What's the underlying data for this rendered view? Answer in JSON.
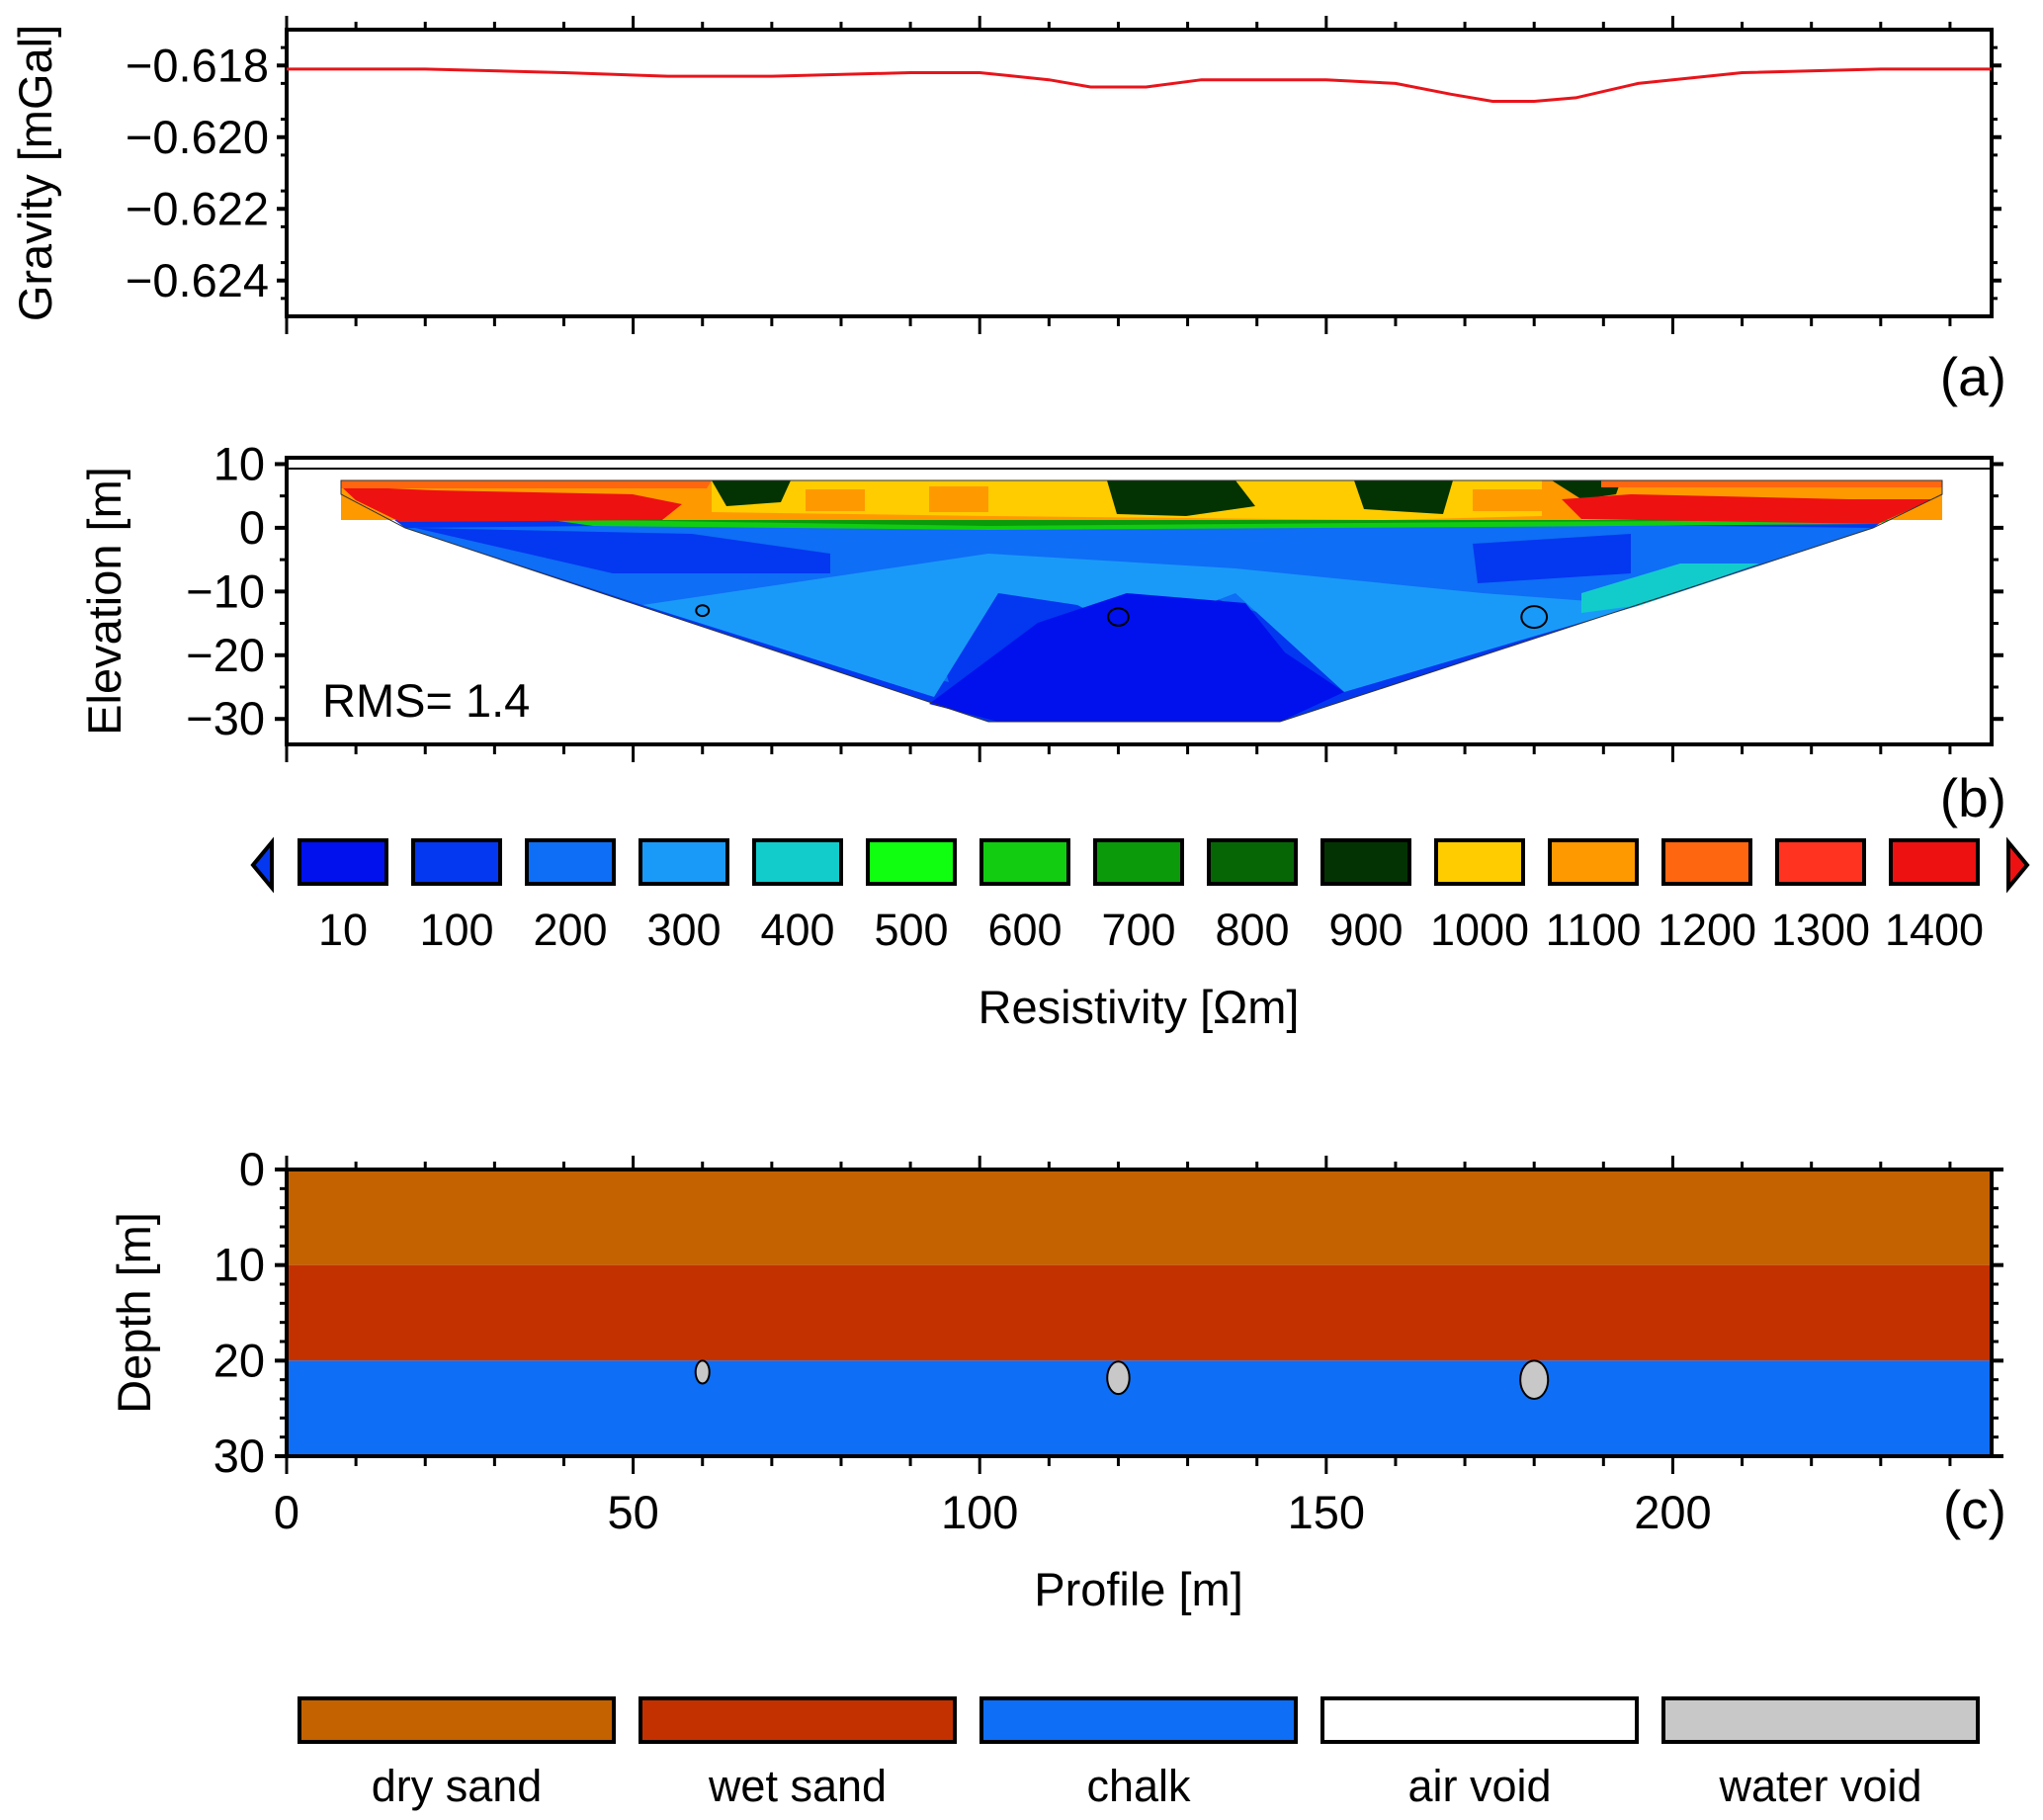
{
  "chart_data": [
    {
      "panel": "a",
      "type": "line",
      "panel_label": "(a)",
      "ylabel": "Gravity [mGal]",
      "xlim": [
        0,
        246
      ],
      "ylim": [
        -0.625,
        -0.617
      ],
      "yticks": [
        -0.618,
        -0.62,
        -0.622,
        -0.624
      ],
      "ytick_labels": [
        "−0.618",
        "−0.620",
        "−0.622",
        "−0.624"
      ],
      "line_color": "#e8141b",
      "series": [
        {
          "x": [
            0,
            20,
            40,
            55,
            60,
            70,
            90,
            100,
            110,
            116,
            120,
            124,
            132,
            140,
            150,
            160,
            168,
            174,
            180,
            186,
            195,
            210,
            230,
            246
          ],
          "y": [
            -0.6181,
            -0.6181,
            -0.6182,
            -0.6183,
            -0.6183,
            -0.6183,
            -0.6182,
            -0.6182,
            -0.6184,
            -0.6186,
            -0.6186,
            -0.6186,
            -0.6184,
            -0.6184,
            -0.6184,
            -0.6185,
            -0.6188,
            -0.619,
            -0.619,
            -0.6189,
            -0.6185,
            -0.6182,
            -0.6181,
            -0.6181
          ]
        }
      ]
    },
    {
      "panel": "b",
      "type": "heatmap",
      "panel_label": "(b)",
      "ylabel": "Elevation [m]",
      "annotation": "RMS= 1.4",
      "xlim": [
        0,
        246
      ],
      "ylim": [
        -34,
        11
      ],
      "yticks": [
        10,
        0,
        -10,
        -20,
        -30
      ],
      "ytick_labels": [
        "10",
        "0",
        "−10",
        "−20",
        "−30"
      ],
      "circles": [
        {
          "x": 60,
          "y": -13,
          "r": 1.0
        },
        {
          "x": 120,
          "y": -14,
          "r": 1.6
        },
        {
          "x": 180,
          "y": -14,
          "r": 2.0
        }
      ]
    },
    {
      "panel": "colorbar",
      "type": "heatmap",
      "title": "Resistivity [Ωm]",
      "levels": [
        "10",
        "100",
        "200",
        "300",
        "400",
        "500",
        "600",
        "700",
        "800",
        "900",
        "1000",
        "1100",
        "1200",
        "1300",
        "1400"
      ],
      "colors": [
        "#0011ee",
        "#0437f0",
        "#0e6ef5",
        "#1a9af8",
        "#12cccc",
        "#10ff10",
        "#11cc11",
        "#0a9a0a",
        "#066606",
        "#033303",
        "#ffcc00",
        "#ff9900",
        "#ff6610",
        "#ff3320",
        "#ee1111"
      ]
    },
    {
      "panel": "c",
      "type": "area",
      "panel_label": "(c)",
      "xlabel": "Profile [m]",
      "ylabel": "Depth [m]",
      "xlim": [
        0,
        246
      ],
      "ylim": [
        0,
        30
      ],
      "xticks": [
        0,
        50,
        100,
        150,
        200
      ],
      "xtick_labels": [
        "0",
        "50",
        "100",
        "150",
        "200"
      ],
      "yticks": [
        0,
        10,
        20,
        30
      ],
      "ytick_labels": [
        "0",
        "10",
        "20",
        "30"
      ],
      "layers": [
        {
          "material": "dry sand",
          "top": 0,
          "bottom": 10
        },
        {
          "material": "wet sand",
          "top": 10,
          "bottom": 20
        },
        {
          "material": "chalk",
          "top": 20,
          "bottom": 30
        }
      ],
      "voids": [
        {
          "x": 60,
          "depth": 21.2,
          "rx": 1.0,
          "ry": 1.2,
          "material": "water void"
        },
        {
          "x": 120,
          "depth": 21.8,
          "rx": 1.6,
          "ry": 1.7,
          "material": "water void"
        },
        {
          "x": 180,
          "depth": 22.0,
          "rx": 2.0,
          "ry": 2.0,
          "material": "water void"
        }
      ],
      "legend": [
        {
          "label": "dry sand",
          "color": "#c46200"
        },
        {
          "label": "wet sand",
          "color": "#c43100"
        },
        {
          "label": "chalk",
          "color": "#0e6ef5"
        },
        {
          "label": "air void",
          "color": "#ffffff"
        },
        {
          "label": "water void",
          "color": "#c8c8c8"
        }
      ]
    }
  ]
}
